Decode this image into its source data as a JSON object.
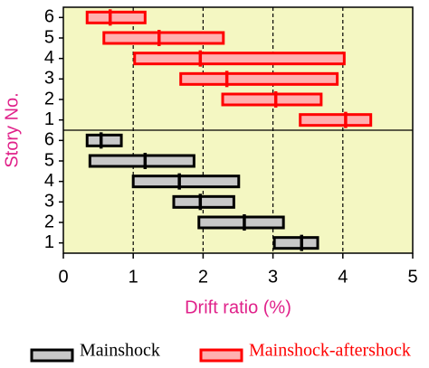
{
  "chart_data": {
    "type": "range-bar",
    "xlabel": "Drift ratio (%)",
    "ylabel": "Story No.",
    "categories": [
      "6",
      "5",
      "4",
      "3",
      "2",
      "1"
    ],
    "series": [
      {
        "name": "Mainshock",
        "color": "#000000",
        "fill": "#c8c8c8",
        "low": [
          0.34,
          0.38,
          1.0,
          1.58,
          1.94,
          3.02
        ],
        "high": [
          0.83,
          1.87,
          2.51,
          2.44,
          3.15,
          3.64
        ],
        "median": [
          0.54,
          1.17,
          1.66,
          1.96,
          2.59,
          3.41
        ]
      },
      {
        "name": "Mainshock-aftershock",
        "color": "#ff0000",
        "fill": "#ffb0b0",
        "low": [
          0.34,
          0.58,
          1.02,
          1.68,
          2.28,
          3.39
        ],
        "high": [
          1.17,
          2.29,
          4.02,
          3.92,
          3.69,
          4.4
        ],
        "median": [
          0.67,
          1.37,
          1.96,
          2.34,
          3.04,
          4.04
        ]
      }
    ],
    "xlim": [
      0,
      5
    ],
    "xticks": [
      0,
      1,
      2,
      3,
      4,
      5
    ],
    "grid": true
  }
}
